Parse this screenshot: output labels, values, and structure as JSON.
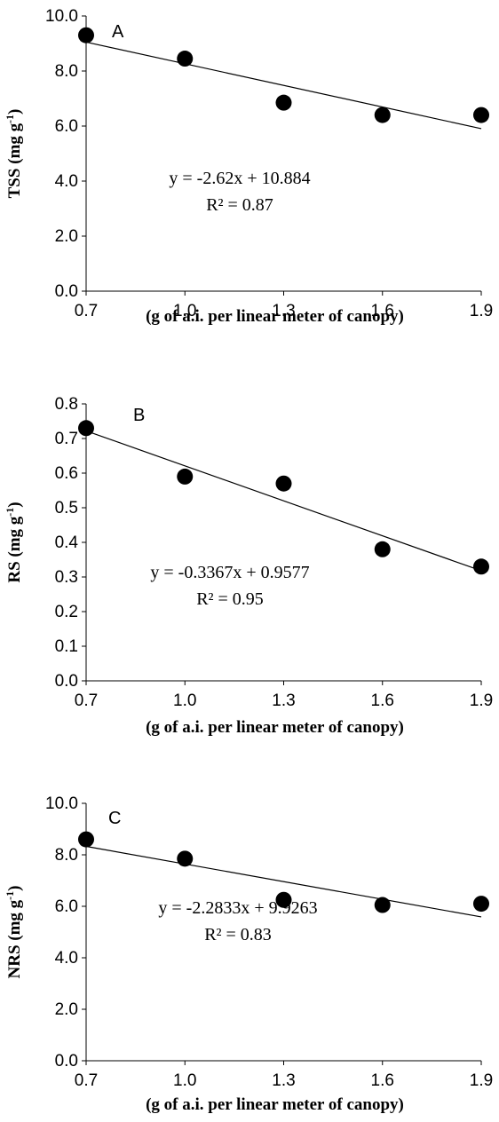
{
  "chart_data": [
    {
      "type": "scatter",
      "panel_label": "A",
      "xlabel": "(g of a.i. per linear  meter of canopy)",
      "ylabel": "TSS (mg g",
      "ylabel_sup": "-1",
      "ylabel_close": ")",
      "x_ticks": [
        "0.7",
        "1.0",
        "1.3",
        "1.6",
        "1.9"
      ],
      "y_ticks": [
        "0.0",
        "2.0",
        "4.0",
        "6.0",
        "8.0",
        "10.0"
      ],
      "xlim": [
        0.7,
        1.9
      ],
      "ylim": [
        0,
        10
      ],
      "x": [
        0.7,
        1.0,
        1.3,
        1.6,
        1.9
      ],
      "y": [
        9.3,
        8.45,
        6.85,
        6.4,
        6.4
      ],
      "trendline": {
        "slope": -2.62,
        "intercept": 10.884
      },
      "equation": "y = -2.62x + 10.884",
      "r2": "R² = 0.87"
    },
    {
      "type": "scatter",
      "panel_label": "B",
      "xlabel": "(g of a.i. per linear  meter of canopy)",
      "ylabel": "RS  (mg g",
      "ylabel_sup": "-1",
      "ylabel_close": ")",
      "x_ticks": [
        "0.7",
        "1.0",
        "1.3",
        "1.6",
        "1.9"
      ],
      "y_ticks": [
        "0.0",
        "0.1",
        "0.2",
        "0.3",
        "0.4",
        "0.5",
        "0.6",
        "0.7",
        "0.8"
      ],
      "xlim": [
        0.7,
        1.9
      ],
      "ylim": [
        0,
        0.8
      ],
      "x": [
        0.7,
        1.0,
        1.3,
        1.6,
        1.9
      ],
      "y": [
        0.73,
        0.59,
        0.57,
        0.38,
        0.33
      ],
      "trendline": {
        "slope": -0.3367,
        "intercept": 0.9577
      },
      "equation": "y = -0.3367x + 0.9577",
      "r2": "R² = 0.95"
    },
    {
      "type": "scatter",
      "panel_label": "C",
      "xlabel": "(g of a.i. per linear  meter of canopy)",
      "ylabel": "NRS  (mg g",
      "ylabel_sup": "-1",
      "ylabel_close": ")",
      "x_ticks": [
        "0.7",
        "1.0",
        "1.3",
        "1.6",
        "1.9"
      ],
      "y_ticks": [
        "0.0",
        "2.0",
        "4.0",
        "6.0",
        "8.0",
        "10.0"
      ],
      "xlim": [
        0.7,
        1.9
      ],
      "ylim": [
        0,
        10
      ],
      "x": [
        0.7,
        1.0,
        1.3,
        1.6,
        1.9
      ],
      "y": [
        8.6,
        7.85,
        6.25,
        6.05,
        6.1
      ],
      "trendline": {
        "slope": -2.2833,
        "intercept": 9.9263
      },
      "equation": "y = -2.2833x + 9.9263",
      "r2": "R² = 0.83"
    }
  ]
}
